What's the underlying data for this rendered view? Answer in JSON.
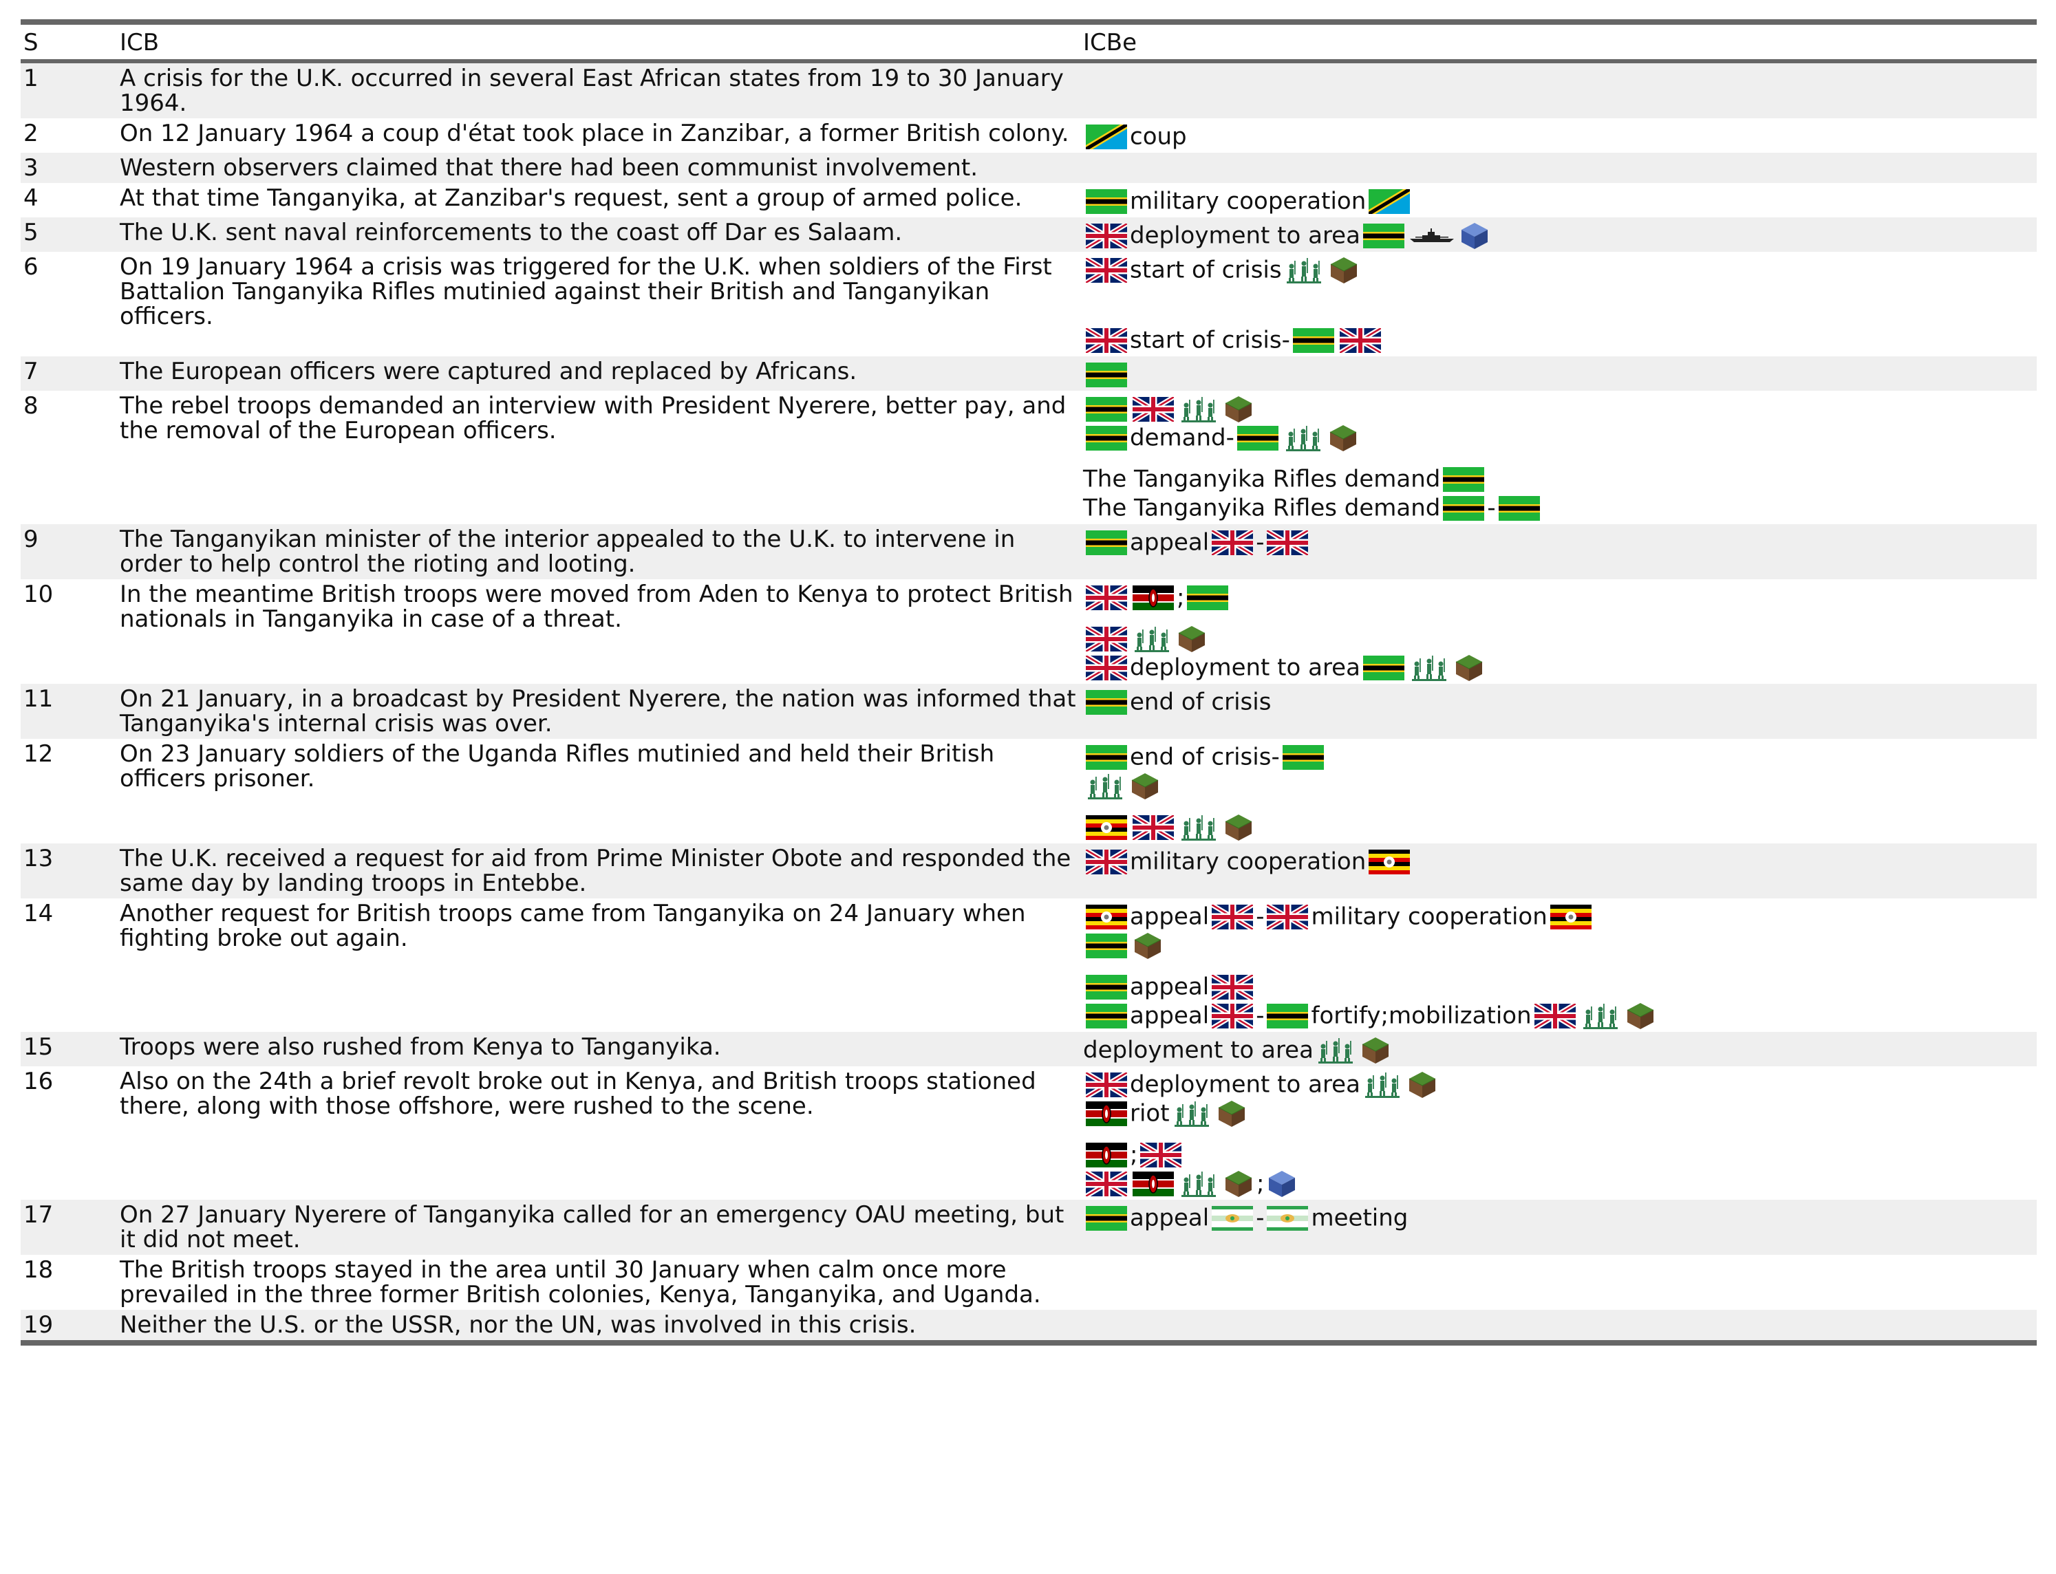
{
  "header": {
    "s": "S",
    "icb": "ICB",
    "icbe": "ICBe"
  },
  "icon_names": {
    "tz": "tanzania-flag-icon",
    "gb": "uk-flag-icon",
    "tg": "tanganyika-flag-icon",
    "ke": "kenya-flag-icon",
    "ug": "uganda-flag-icon",
    "ea": "east-african-federation-flag-icon",
    "troops": "soldiers-icon",
    "land": "land-domain-icon",
    "ship": "warship-icon",
    "sea": "sea-domain-icon"
  },
  "rows": [
    {
      "s": "1",
      "text": "A crisis for the U.K. occurred in several East African states from 19 to 30 January 1964.",
      "shade": true,
      "events": []
    },
    {
      "s": "2",
      "text": "On 12 January 1964 a coup d'état took place in Zanzibar, a former British colony.",
      "shade": false,
      "events": [
        {
          "gap": false,
          "parts": [
            {
              "i": "tz"
            },
            {
              "t": "coup"
            }
          ]
        }
      ]
    },
    {
      "s": "3",
      "text": "Western observers claimed that there had been communist involvement.",
      "shade": true,
      "events": []
    },
    {
      "s": "4",
      "text": "At that time Tanganyika, at Zanzibar's request, sent a group of armed police.",
      "shade": false,
      "events": [
        {
          "gap": false,
          "parts": [
            {
              "i": "tg"
            },
            {
              "t": "military cooperation"
            },
            {
              "i": "tz"
            }
          ]
        }
      ]
    },
    {
      "s": "5",
      "text": "The U.K. sent naval reinforcements to the coast off Dar es Salaam.",
      "shade": true,
      "events": [
        {
          "gap": false,
          "parts": [
            {
              "i": "gb"
            },
            {
              "t": "deployment to area"
            },
            {
              "i": "tg"
            },
            {
              "i": "ship"
            },
            {
              "i": "sea"
            }
          ]
        }
      ]
    },
    {
      "s": "6",
      "text": "On 19 January 1964 a crisis was triggered for the U.K. when soldiers of the First Battalion Tanganyika Rifles mutinied against their British and Tanganyikan officers.",
      "shade": false,
      "events": [
        {
          "gap": false,
          "parts": [
            {
              "i": "gb"
            },
            {
              "t": "start of crisis"
            },
            {
              "i": "troops"
            },
            {
              "i": "land"
            }
          ]
        },
        {
          "gap": true,
          "parts": []
        },
        {
          "gap": false,
          "parts": [
            {
              "i": "gb"
            },
            {
              "t": "start of crisis"
            },
            {
              "t": "-"
            },
            {
              "i": "tg"
            },
            {
              "i": "gb"
            }
          ]
        }
      ]
    },
    {
      "s": "7",
      "text": "The European officers were captured and replaced by Africans.",
      "shade": true,
      "events": [
        {
          "gap": false,
          "parts": [
            {
              "i": "tg"
            }
          ]
        }
      ]
    },
    {
      "s": "8",
      "text": "The rebel troops demanded an interview with President Nyerere, better pay, and the removal of the European officers.",
      "shade": false,
      "events": [
        {
          "gap": false,
          "parts": [
            {
              "i": "tg"
            },
            {
              "i": "gb"
            },
            {
              "i": "troops"
            },
            {
              "i": "land"
            }
          ]
        },
        {
          "gap": false,
          "parts": [
            {
              "i": "tg"
            },
            {
              "t": "demand"
            },
            {
              "t": "-"
            },
            {
              "i": "tg"
            },
            {
              "i": "troops"
            },
            {
              "i": "land"
            }
          ]
        },
        {
          "gap": true,
          "parts": [
            {
              "t": "The Tanganyika Rifles demand"
            },
            {
              "i": "tg"
            }
          ]
        },
        {
          "gap": false,
          "parts": [
            {
              "t": "The Tanganyika Rifles demand"
            },
            {
              "i": "tg"
            },
            {
              "t": "-"
            },
            {
              "i": "tg"
            }
          ]
        }
      ]
    },
    {
      "s": "9",
      "text": "The Tanganyikan minister of the interior appealed to the U.K. to intervene in order to help control the rioting and looting.",
      "shade": true,
      "events": [
        {
          "gap": false,
          "parts": [
            {
              "i": "tg"
            },
            {
              "t": "appeal"
            },
            {
              "i": "gb"
            },
            {
              "t": "-"
            },
            {
              "i": "gb"
            }
          ]
        }
      ]
    },
    {
      "s": "10",
      "text": "In the meantime British troops were moved from Aden to Kenya to protect British nationals in Tanganyika in case of a threat.",
      "shade": false,
      "events": [
        {
          "gap": false,
          "parts": [
            {
              "i": "gb"
            },
            {
              "i": "ke"
            },
            {
              "t": ";"
            },
            {
              "i": "tg"
            }
          ]
        },
        {
          "gap": true,
          "parts": [
            {
              "i": "gb"
            },
            {
              "i": "troops"
            },
            {
              "i": "land"
            }
          ]
        },
        {
          "gap": false,
          "parts": [
            {
              "i": "gb"
            },
            {
              "t": "deployment to area"
            },
            {
              "i": "tg"
            },
            {
              "i": "troops"
            },
            {
              "i": "land"
            }
          ]
        }
      ]
    },
    {
      "s": "11",
      "text": "On 21 January, in a broadcast by President Nyerere, the nation was informed that Tanganyika's internal crisis was over.",
      "shade": true,
      "events": [
        {
          "gap": false,
          "parts": [
            {
              "i": "tg"
            },
            {
              "t": "end of crisis"
            }
          ]
        }
      ]
    },
    {
      "s": "12",
      "text": "On 23 January soldiers of the Uganda Rifles mutinied and held their British officers prisoner.",
      "shade": false,
      "events": [
        {
          "gap": false,
          "parts": [
            {
              "i": "tg"
            },
            {
              "t": "end of crisis"
            },
            {
              "t": "-"
            },
            {
              "i": "tg"
            }
          ]
        },
        {
          "gap": false,
          "parts": [
            {
              "i": "troops"
            },
            {
              "i": "land"
            }
          ]
        },
        {
          "gap": true,
          "parts": [
            {
              "i": "ug"
            },
            {
              "i": "gb"
            },
            {
              "i": "troops"
            },
            {
              "i": "land"
            }
          ]
        }
      ]
    },
    {
      "s": "13",
      "text": "The U.K. received a request for aid from Prime Minister Obote and responded the same day by landing troops in Entebbe.",
      "shade": true,
      "events": [
        {
          "gap": false,
          "parts": [
            {
              "i": "gb"
            },
            {
              "t": "military cooperation"
            },
            {
              "i": "ug"
            }
          ]
        }
      ]
    },
    {
      "s": "14",
      "text": "Another request for British troops came from Tanganyika on 24 January when fighting broke out again.",
      "shade": false,
      "events": [
        {
          "gap": false,
          "parts": [
            {
              "i": "ug"
            },
            {
              "t": "appeal"
            },
            {
              "i": "gb"
            },
            {
              "t": "-"
            },
            {
              "i": "gb"
            },
            {
              "t": "military cooperation"
            },
            {
              "i": "ug"
            }
          ]
        },
        {
          "gap": false,
          "parts": [
            {
              "i": "tg"
            },
            {
              "i": "land"
            }
          ]
        },
        {
          "gap": true,
          "parts": [
            {
              "i": "tg"
            },
            {
              "t": "appeal"
            },
            {
              "i": "gb"
            }
          ]
        },
        {
          "gap": false,
          "parts": [
            {
              "i": "tg"
            },
            {
              "t": "appeal"
            },
            {
              "i": "gb"
            },
            {
              "t": "-"
            },
            {
              "i": "tg"
            },
            {
              "t": "fortify;mobilization"
            },
            {
              "i": "gb"
            },
            {
              "i": "troops"
            },
            {
              "i": "land"
            }
          ]
        }
      ]
    },
    {
      "s": "15",
      "text": "Troops were also rushed from Kenya to Tanganyika.",
      "shade": true,
      "events": [
        {
          "gap": false,
          "parts": [
            {
              "t": "deployment to area"
            },
            {
              "i": "troops"
            },
            {
              "i": "land"
            }
          ]
        }
      ]
    },
    {
      "s": "16",
      "text": "Also on the 24th a brief revolt broke out in Kenya, and British troops stationed there, along with those offshore, were rushed to the scene.",
      "shade": false,
      "events": [
        {
          "gap": false,
          "parts": [
            {
              "i": "gb"
            },
            {
              "t": "deployment to area"
            },
            {
              "i": "troops"
            },
            {
              "i": "land"
            }
          ]
        },
        {
          "gap": false,
          "parts": [
            {
              "i": "ke"
            },
            {
              "t": "riot"
            },
            {
              "i": "troops"
            },
            {
              "i": "land"
            }
          ]
        },
        {
          "gap": true,
          "parts": [
            {
              "i": "ke"
            },
            {
              "t": ";"
            },
            {
              "i": "gb"
            }
          ]
        },
        {
          "gap": false,
          "parts": [
            {
              "i": "gb"
            },
            {
              "i": "ke"
            },
            {
              "i": "troops"
            },
            {
              "i": "land"
            },
            {
              "t": ";"
            },
            {
              "i": "sea"
            }
          ]
        }
      ]
    },
    {
      "s": "17",
      "text": "On 27 January Nyerere of Tanganyika called for an emergency OAU meeting, but it did not meet.",
      "shade": true,
      "events": [
        {
          "gap": false,
          "parts": [
            {
              "i": "tg"
            },
            {
              "t": "appeal"
            },
            {
              "i": "ea"
            },
            {
              "t": "-"
            },
            {
              "i": "ea"
            },
            {
              "t": "meeting"
            }
          ]
        }
      ]
    },
    {
      "s": "18",
      "text": "The British troops stayed in the area until 30 January when calm once more prevailed in the three former British colonies, Kenya, Tanganyika, and Uganda.",
      "shade": false,
      "events": []
    },
    {
      "s": "19",
      "text": "Neither the U.S. or the USSR, nor the UN, was involved in this crisis.",
      "shade": true,
      "events": []
    }
  ]
}
